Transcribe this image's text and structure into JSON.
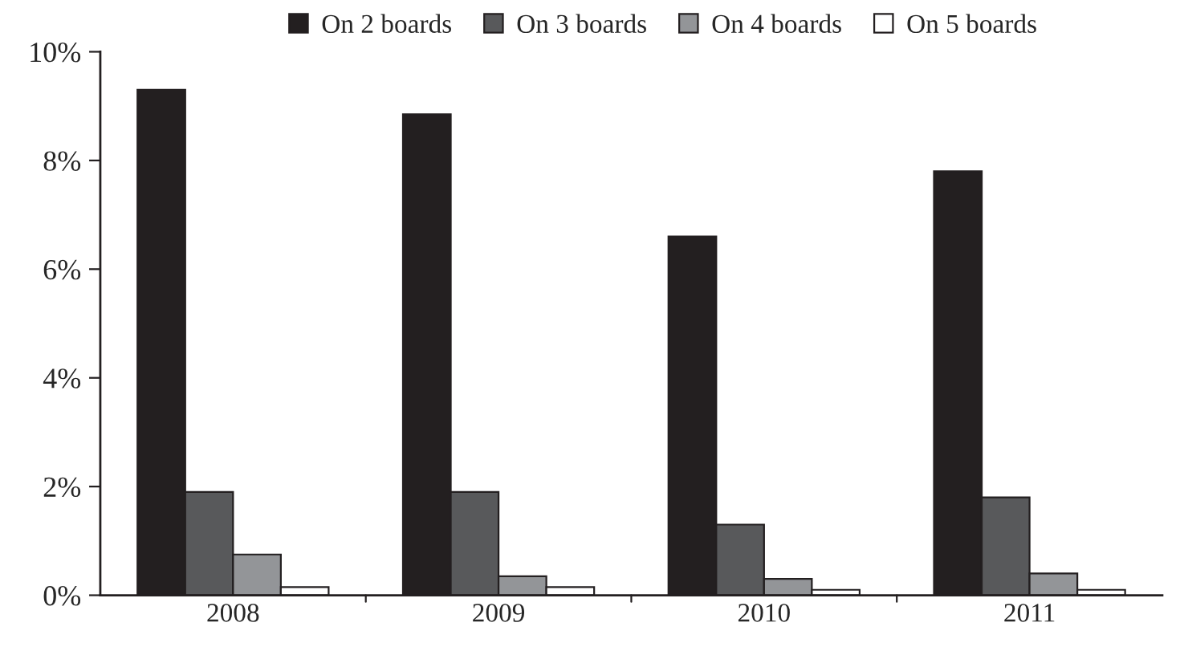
{
  "chart_data": {
    "type": "bar",
    "categories": [
      "2008",
      "2009",
      "2010",
      "2011"
    ],
    "series": [
      {
        "name": "On 2 boards",
        "color": "#231f20",
        "values": [
          9.3,
          8.85,
          6.6,
          7.8
        ]
      },
      {
        "name": "On 3 boards",
        "color": "#58595b",
        "values": [
          1.9,
          1.9,
          1.3,
          1.8
        ]
      },
      {
        "name": "On 4 boards",
        "color": "#939598",
        "values": [
          0.75,
          0.35,
          0.3,
          0.4
        ]
      },
      {
        "name": "On 5 boards",
        "color": "#ffffff",
        "values": [
          0.15,
          0.15,
          0.1,
          0.1
        ]
      }
    ],
    "ylim": [
      0,
      10
    ],
    "yticks": [
      {
        "value": 0,
        "label": "0%"
      },
      {
        "value": 2,
        "label": "2%"
      },
      {
        "value": 4,
        "label": "4%"
      },
      {
        "value": 6,
        "label": "6%"
      },
      {
        "value": 8,
        "label": "8%"
      },
      {
        "value": 10,
        "label": "10%"
      }
    ],
    "grid": false,
    "legend": "top"
  }
}
